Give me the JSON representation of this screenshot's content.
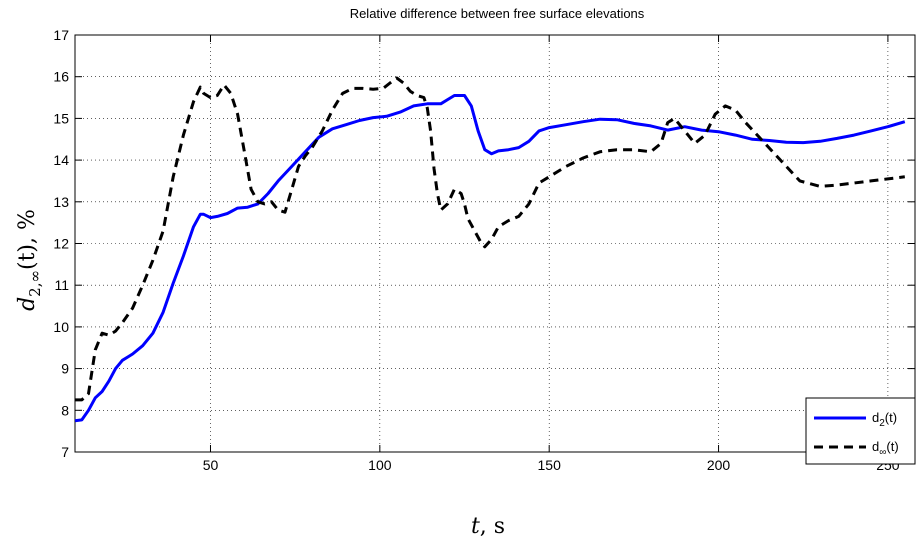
{
  "chart_data": {
    "type": "line",
    "title": "Relative difference between free surface elevations",
    "xlabel": {
      "var": "t",
      "unit": ", s"
    },
    "ylabel": {
      "base": "d",
      "sub": "2,∞",
      "rest": "(t), %"
    },
    "xlim": [
      10,
      258
    ],
    "ylim": [
      7,
      17
    ],
    "xticks": [
      50,
      100,
      150,
      200,
      250
    ],
    "yticks": [
      7,
      8,
      9,
      10,
      11,
      12,
      13,
      14,
      15,
      16,
      17
    ],
    "grid": true,
    "legend_position": "bottom-right",
    "series": [
      {
        "name": "d2(t)",
        "legend_base": "d",
        "legend_sub": "2",
        "legend_rest": "(t)",
        "color": "#0000ff",
        "style": "solid",
        "x": [
          10,
          12,
          14,
          16,
          18,
          20,
          22,
          24,
          27,
          30,
          33,
          36,
          39,
          42,
          45,
          47,
          48,
          50,
          52,
          55,
          58,
          61,
          64,
          67,
          70,
          74,
          78,
          82,
          86,
          90,
          94,
          98,
          102,
          106,
          110,
          114,
          118,
          120,
          122,
          125,
          127,
          129,
          131,
          133,
          135,
          138,
          141,
          144,
          147,
          150,
          155,
          160,
          165,
          170,
          175,
          180,
          185,
          190,
          195,
          200,
          205,
          210,
          215,
          220,
          225,
          230,
          235,
          240,
          245,
          250,
          255
        ],
        "y": [
          7.75,
          7.77,
          8.0,
          8.3,
          8.45,
          8.7,
          9.0,
          9.2,
          9.35,
          9.55,
          9.85,
          10.35,
          11.05,
          11.7,
          12.4,
          12.7,
          12.7,
          12.62,
          12.65,
          12.72,
          12.85,
          12.87,
          12.95,
          13.2,
          13.5,
          13.85,
          14.2,
          14.55,
          14.75,
          14.85,
          14.95,
          15.02,
          15.05,
          15.15,
          15.3,
          15.35,
          15.35,
          15.45,
          15.55,
          15.55,
          15.3,
          14.7,
          14.25,
          14.15,
          14.22,
          14.25,
          14.3,
          14.45,
          14.7,
          14.78,
          14.85,
          14.92,
          14.98,
          14.97,
          14.88,
          14.82,
          14.72,
          14.8,
          14.72,
          14.68,
          14.6,
          14.5,
          14.47,
          14.43,
          14.42,
          14.45,
          14.52,
          14.6,
          14.7,
          14.8,
          14.92
        ]
      },
      {
        "name": "d∞(t)",
        "legend_base": "d",
        "legend_sub": "∞",
        "legend_rest": "(t)",
        "color": "#000000",
        "style": "dashed",
        "x": [
          10,
          12,
          14,
          16,
          18,
          20,
          22,
          24,
          27,
          30,
          33,
          36,
          39,
          42,
          45,
          47,
          48,
          50,
          52,
          54,
          56,
          58,
          60,
          62,
          64,
          66,
          68,
          70,
          72,
          74,
          76,
          78,
          80,
          83,
          86,
          89,
          92,
          95,
          98,
          101,
          103,
          105,
          107,
          109,
          111,
          113,
          114,
          115,
          116,
          117,
          118,
          120,
          122,
          124,
          125,
          126,
          128,
          130,
          131,
          133,
          135,
          138,
          141,
          144,
          147,
          150,
          155,
          160,
          165,
          170,
          175,
          180,
          183,
          185,
          187,
          190,
          193,
          196,
          199,
          202,
          205,
          208,
          212,
          216,
          220,
          224,
          230,
          235,
          240,
          245,
          250,
          255
        ],
        "y": [
          8.25,
          8.25,
          8.4,
          9.45,
          9.85,
          9.8,
          9.9,
          10.1,
          10.45,
          11.0,
          11.6,
          12.3,
          13.6,
          14.6,
          15.4,
          15.75,
          15.6,
          15.5,
          15.55,
          15.8,
          15.6,
          15.1,
          14.2,
          13.3,
          13.0,
          12.95,
          13.0,
          12.8,
          12.75,
          13.3,
          13.85,
          14.1,
          14.3,
          14.7,
          15.2,
          15.6,
          15.72,
          15.72,
          15.7,
          15.72,
          15.85,
          15.97,
          15.85,
          15.65,
          15.55,
          15.5,
          15.25,
          14.7,
          13.8,
          13.2,
          12.8,
          12.95,
          13.3,
          13.2,
          12.95,
          12.6,
          12.3,
          12.0,
          11.92,
          12.1,
          12.4,
          12.55,
          12.65,
          12.95,
          13.45,
          13.6,
          13.85,
          14.05,
          14.2,
          14.25,
          14.25,
          14.2,
          14.4,
          14.9,
          15.0,
          14.7,
          14.4,
          14.6,
          15.1,
          15.3,
          15.2,
          14.9,
          14.55,
          14.2,
          13.85,
          13.5,
          13.37,
          13.4,
          13.45,
          13.5,
          13.55,
          13.6
        ]
      }
    ]
  }
}
